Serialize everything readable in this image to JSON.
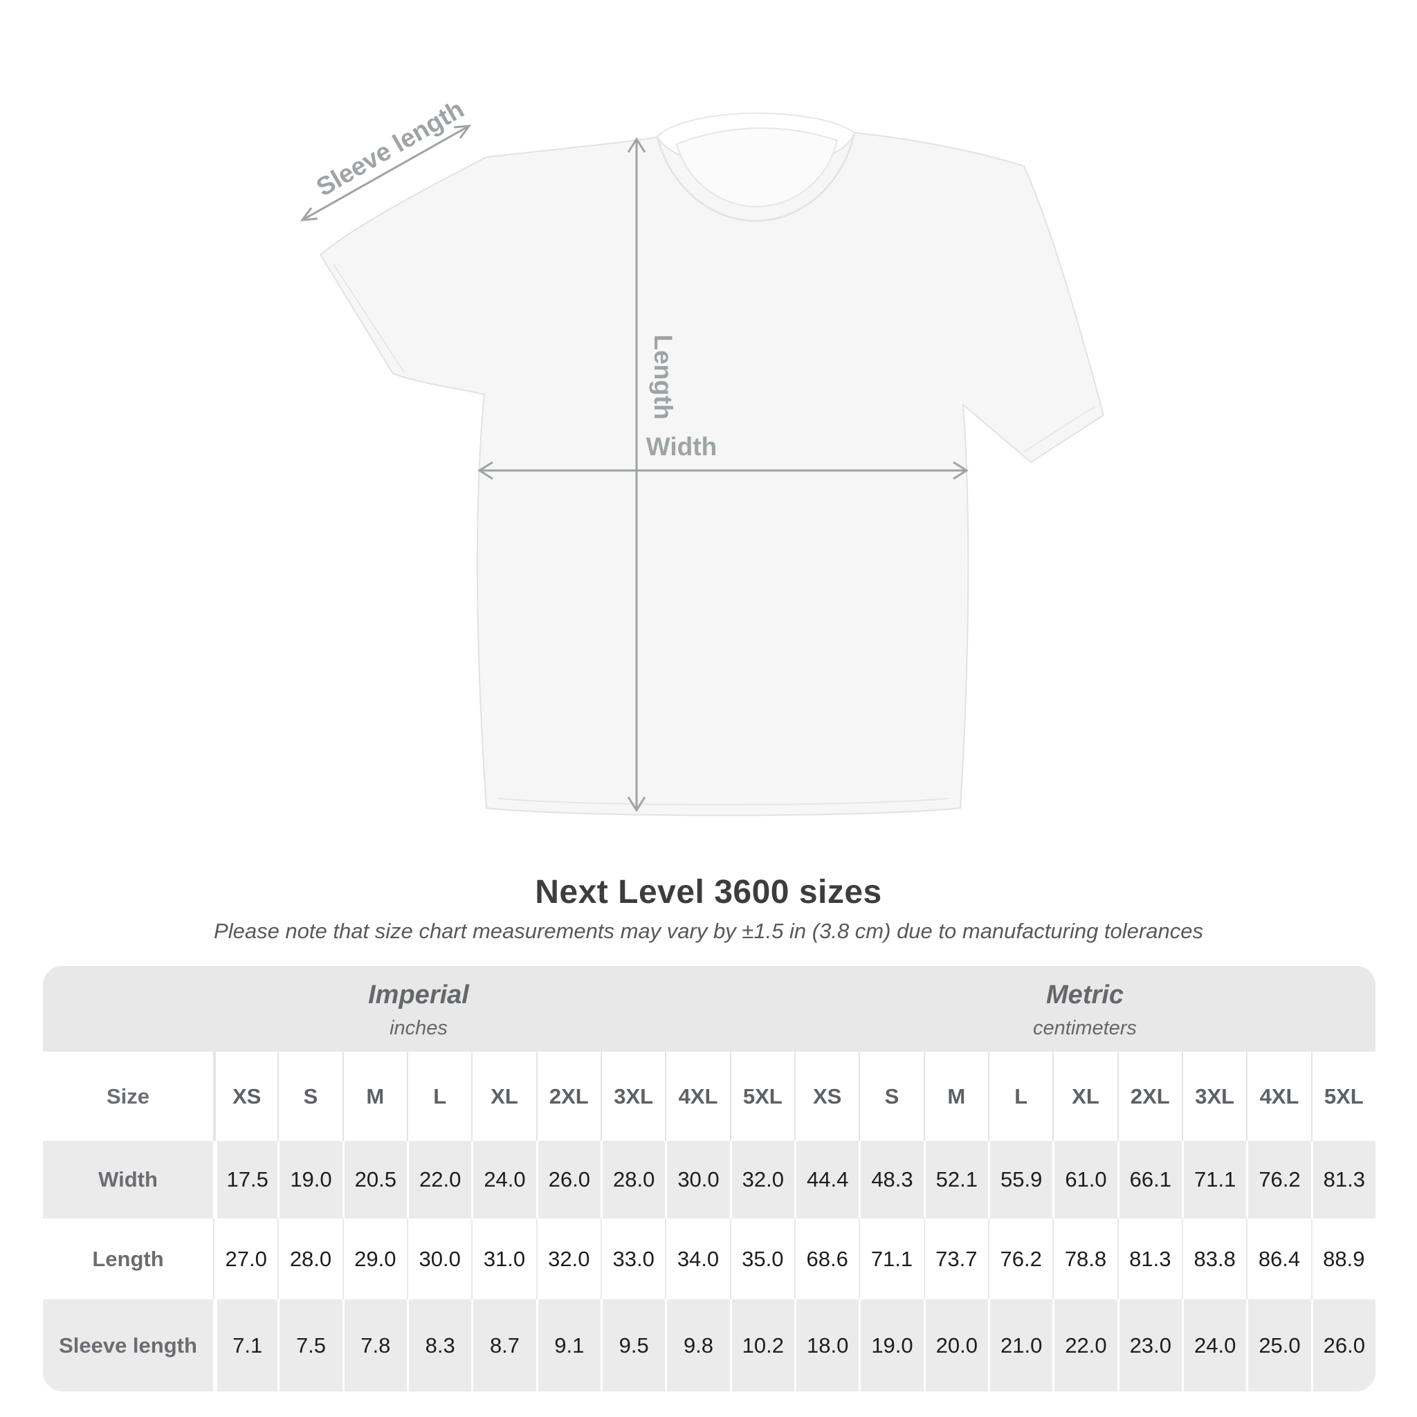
{
  "page": {
    "background": "#ffffff"
  },
  "diagram": {
    "sleeve_length_label": "Sleeve length",
    "length_label": "Length",
    "width_label": "Width"
  },
  "chart_data": {
    "type": "table",
    "title": "Next Level 3600 sizes",
    "note": "Please note that size chart measurements may vary by ±1.5 in (3.8 cm) due to manufacturing tolerances",
    "unit_groups": [
      {
        "label": "Imperial",
        "sublabel": "inches"
      },
      {
        "label": "Metric",
        "sublabel": "centimeters"
      }
    ],
    "size_column_header": "Size",
    "size_columns": [
      "XS",
      "S",
      "M",
      "L",
      "XL",
      "2XL",
      "3XL",
      "4XL",
      "5XL"
    ],
    "rows": [
      {
        "label": "Width",
        "imperial": [
          "17.5",
          "19.0",
          "20.5",
          "22.0",
          "24.0",
          "26.0",
          "28.0",
          "30.0",
          "32.0"
        ],
        "metric": [
          "44.4",
          "48.3",
          "52.1",
          "55.9",
          "61.0",
          "66.1",
          "71.1",
          "76.2",
          "81.3"
        ]
      },
      {
        "label": "Length",
        "imperial": [
          "27.0",
          "28.0",
          "29.0",
          "30.0",
          "31.0",
          "32.0",
          "33.0",
          "34.0",
          "35.0"
        ],
        "metric": [
          "68.6",
          "71.1",
          "73.7",
          "76.2",
          "78.8",
          "81.3",
          "83.8",
          "86.4",
          "88.9"
        ]
      },
      {
        "label": "Sleeve length",
        "imperial": [
          "7.1",
          "7.5",
          "7.8",
          "8.3",
          "8.7",
          "9.1",
          "9.5",
          "9.8",
          "10.2"
        ],
        "metric": [
          "18.0",
          "19.0",
          "20.0",
          "21.0",
          "22.0",
          "23.0",
          "24.0",
          "25.0",
          "26.0"
        ]
      }
    ]
  },
  "colors": {
    "arrow_gray": "#9ea3a6",
    "band_gray": "#e8e8e9",
    "row_gray": "#ebebec",
    "title_text": "#3b3d3f",
    "value_text": "#1d1d1f",
    "label_text": "#6a6e72",
    "shirt_fill": "#f6f6f7",
    "shirt_outline": "#e2e2e4"
  }
}
